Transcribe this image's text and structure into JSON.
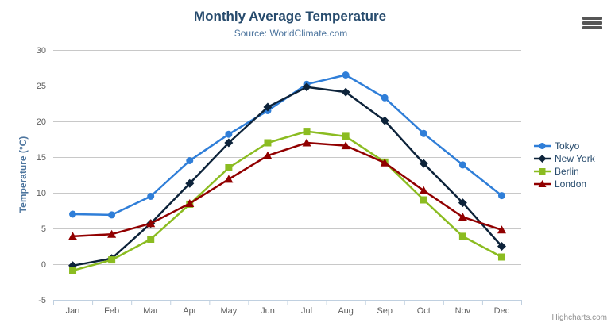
{
  "chart": {
    "title": "Monthly Average Temperature",
    "subtitle": "Source: WorldClimate.com",
    "credits": "Highcharts.com"
  },
  "chart_data": {
    "type": "line",
    "title": "Monthly Average Temperature",
    "subtitle": "Source: WorldClimate.com",
    "xlabel": "",
    "ylabel": "Temperature (°C)",
    "ylim": [
      -5,
      30
    ],
    "ytick_step": 5,
    "yticks": [
      30,
      25,
      20,
      15,
      10,
      5,
      0,
      -5
    ],
    "grid": true,
    "legend_position": "right",
    "categories": [
      "Jan",
      "Feb",
      "Mar",
      "Apr",
      "May",
      "Jun",
      "Jul",
      "Aug",
      "Sep",
      "Oct",
      "Nov",
      "Dec"
    ],
    "series": [
      {
        "name": "Tokyo",
        "color": "#2f7ed8",
        "marker": "circle",
        "values": [
          7.0,
          6.9,
          9.5,
          14.5,
          18.2,
          21.5,
          25.2,
          26.5,
          23.3,
          18.3,
          13.9,
          9.6
        ]
      },
      {
        "name": "New York",
        "color": "#0d233a",
        "marker": "diamond",
        "values": [
          -0.2,
          0.8,
          5.7,
          11.3,
          17.0,
          22.0,
          24.8,
          24.1,
          20.1,
          14.1,
          8.6,
          2.5
        ]
      },
      {
        "name": "Berlin",
        "color": "#8bbc21",
        "marker": "square",
        "values": [
          -0.9,
          0.6,
          3.5,
          8.4,
          13.5,
          17.0,
          18.6,
          17.9,
          14.3,
          9.0,
          3.9,
          1.0
        ]
      },
      {
        "name": "London",
        "color": "#910000",
        "marker": "triangle",
        "values": [
          3.9,
          4.2,
          5.7,
          8.5,
          11.9,
          15.2,
          17.0,
          16.6,
          14.2,
          10.3,
          6.6,
          4.8
        ]
      }
    ]
  },
  "colors": {
    "title": "#274b6d",
    "subtitle": "#4d759e",
    "axis_label": "#606060",
    "axis_title": "#4d759e",
    "gridline": "#c8c8c8",
    "axis_line": "#c0d0e0",
    "legend_text": "#274b6d",
    "credits": "#909090",
    "background": "#ffffff",
    "menu_icon": "#565656"
  }
}
